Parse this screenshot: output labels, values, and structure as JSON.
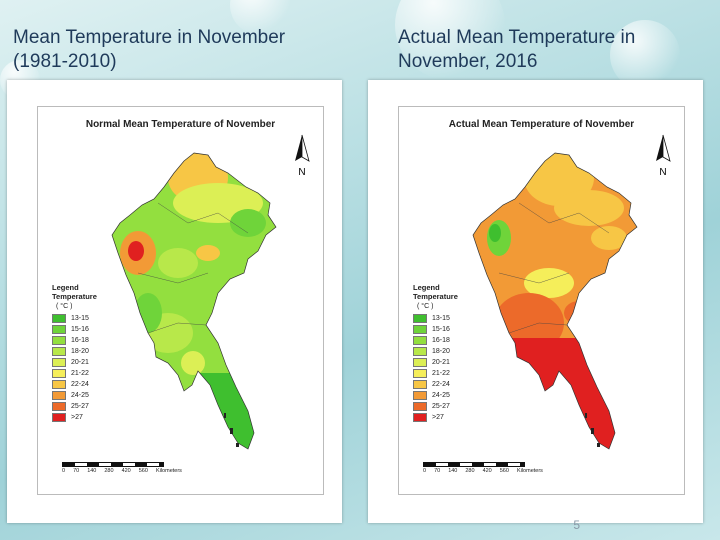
{
  "slide": {
    "left_title": "Mean Temperature in November\n(1981-2010)",
    "right_title": "Actual Mean Temperature in\nNovember, 2016",
    "page_number": "5"
  },
  "maps": [
    {
      "title": "Normal Mean Temperature of November",
      "north_label": "N",
      "legend_title": "Legend",
      "legend_subtitle": "Temperature",
      "legend_unit": "( °C )",
      "legend": [
        {
          "label": "13-15",
          "color": "#3fbf2f"
        },
        {
          "label": "15-16",
          "color": "#6fd43a"
        },
        {
          "label": "16-18",
          "color": "#93df3f"
        },
        {
          "label": "18-20",
          "color": "#b8e84a"
        },
        {
          "label": "20-21",
          "color": "#dcef55"
        },
        {
          "label": "21-22",
          "color": "#f5ee5a"
        },
        {
          "label": "22-24",
          "color": "#f7c645"
        },
        {
          "label": "24-25",
          "color": "#f29a36"
        },
        {
          "label": "25-27",
          "color": "#ec6a2a"
        },
        {
          "label": ">27",
          "color": "#e02020"
        }
      ],
      "scale_labels": [
        "0",
        "70",
        "140",
        "280",
        "420",
        "560"
      ],
      "scale_unit": "Kilometers"
    },
    {
      "title": "Actual Mean Temperature of November",
      "north_label": "N",
      "legend_title": "Legend",
      "legend_subtitle": "Temperature",
      "legend_unit": "( °C )",
      "legend": [
        {
          "label": "13-15",
          "color": "#3fbf2f"
        },
        {
          "label": "15-16",
          "color": "#6fd43a"
        },
        {
          "label": "16-18",
          "color": "#93df3f"
        },
        {
          "label": "18-20",
          "color": "#b8e84a"
        },
        {
          "label": "20-21",
          "color": "#dcef55"
        },
        {
          "label": "21-22",
          "color": "#f5ee5a"
        },
        {
          "label": "22-24",
          "color": "#f7c645"
        },
        {
          "label": "24-25",
          "color": "#f29a36"
        },
        {
          "label": "25-27",
          "color": "#ec6a2a"
        },
        {
          "label": ">27",
          "color": "#e02020"
        }
      ],
      "scale_labels": [
        "0",
        "70",
        "140",
        "280",
        "420",
        "560"
      ],
      "scale_unit": "Kilometers"
    }
  ]
}
